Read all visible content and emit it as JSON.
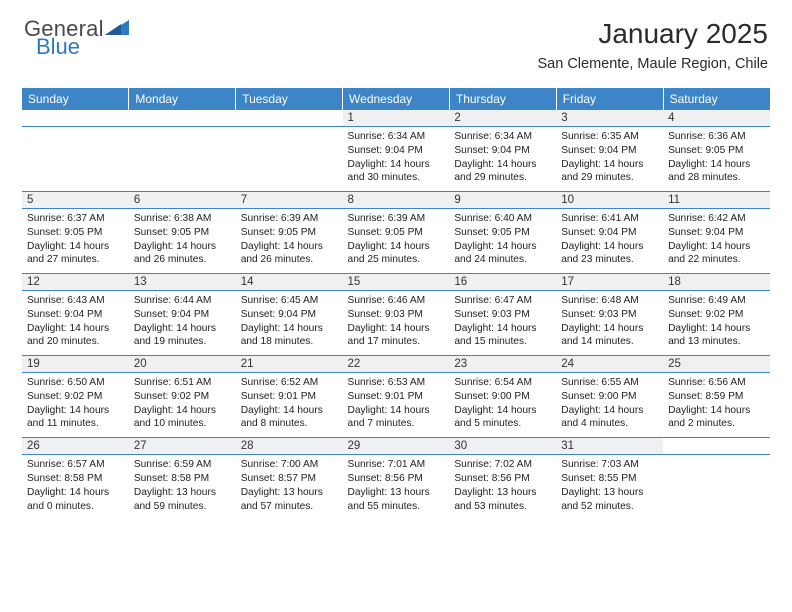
{
  "brand": {
    "word1": "General",
    "word2": "Blue"
  },
  "title": "January 2025",
  "location": "San Clemente, Maule Region, Chile",
  "colors": {
    "header_blue": "#3d85c6",
    "daynum_bg": "#eef0f2",
    "text": "#2b2b2b",
    "logo_blue": "#2f78c2",
    "logo_gray": "#4a4a4a",
    "cell_border": "#3d85c6"
  },
  "typography": {
    "title_fontsize": 28,
    "location_fontsize": 14.5,
    "dow_fontsize": 12,
    "daynum_fontsize": 11.5,
    "cell_fontsize": 10.2
  },
  "days_of_week": [
    "Sunday",
    "Monday",
    "Tuesday",
    "Wednesday",
    "Thursday",
    "Friday",
    "Saturday"
  ],
  "weeks": [
    [
      null,
      null,
      null,
      {
        "n": "1",
        "sunrise": "6:34 AM",
        "sunset": "9:04 PM",
        "daylight": "14 hours and 30 minutes."
      },
      {
        "n": "2",
        "sunrise": "6:34 AM",
        "sunset": "9:04 PM",
        "daylight": "14 hours and 29 minutes."
      },
      {
        "n": "3",
        "sunrise": "6:35 AM",
        "sunset": "9:04 PM",
        "daylight": "14 hours and 29 minutes."
      },
      {
        "n": "4",
        "sunrise": "6:36 AM",
        "sunset": "9:05 PM",
        "daylight": "14 hours and 28 minutes."
      }
    ],
    [
      {
        "n": "5",
        "sunrise": "6:37 AM",
        "sunset": "9:05 PM",
        "daylight": "14 hours and 27 minutes."
      },
      {
        "n": "6",
        "sunrise": "6:38 AM",
        "sunset": "9:05 PM",
        "daylight": "14 hours and 26 minutes."
      },
      {
        "n": "7",
        "sunrise": "6:39 AM",
        "sunset": "9:05 PM",
        "daylight": "14 hours and 26 minutes."
      },
      {
        "n": "8",
        "sunrise": "6:39 AM",
        "sunset": "9:05 PM",
        "daylight": "14 hours and 25 minutes."
      },
      {
        "n": "9",
        "sunrise": "6:40 AM",
        "sunset": "9:05 PM",
        "daylight": "14 hours and 24 minutes."
      },
      {
        "n": "10",
        "sunrise": "6:41 AM",
        "sunset": "9:04 PM",
        "daylight": "14 hours and 23 minutes."
      },
      {
        "n": "11",
        "sunrise": "6:42 AM",
        "sunset": "9:04 PM",
        "daylight": "14 hours and 22 minutes."
      }
    ],
    [
      {
        "n": "12",
        "sunrise": "6:43 AM",
        "sunset": "9:04 PM",
        "daylight": "14 hours and 20 minutes."
      },
      {
        "n": "13",
        "sunrise": "6:44 AM",
        "sunset": "9:04 PM",
        "daylight": "14 hours and 19 minutes."
      },
      {
        "n": "14",
        "sunrise": "6:45 AM",
        "sunset": "9:04 PM",
        "daylight": "14 hours and 18 minutes."
      },
      {
        "n": "15",
        "sunrise": "6:46 AM",
        "sunset": "9:03 PM",
        "daylight": "14 hours and 17 minutes."
      },
      {
        "n": "16",
        "sunrise": "6:47 AM",
        "sunset": "9:03 PM",
        "daylight": "14 hours and 15 minutes."
      },
      {
        "n": "17",
        "sunrise": "6:48 AM",
        "sunset": "9:03 PM",
        "daylight": "14 hours and 14 minutes."
      },
      {
        "n": "18",
        "sunrise": "6:49 AM",
        "sunset": "9:02 PM",
        "daylight": "14 hours and 13 minutes."
      }
    ],
    [
      {
        "n": "19",
        "sunrise": "6:50 AM",
        "sunset": "9:02 PM",
        "daylight": "14 hours and 11 minutes."
      },
      {
        "n": "20",
        "sunrise": "6:51 AM",
        "sunset": "9:02 PM",
        "daylight": "14 hours and 10 minutes."
      },
      {
        "n": "21",
        "sunrise": "6:52 AM",
        "sunset": "9:01 PM",
        "daylight": "14 hours and 8 minutes."
      },
      {
        "n": "22",
        "sunrise": "6:53 AM",
        "sunset": "9:01 PM",
        "daylight": "14 hours and 7 minutes."
      },
      {
        "n": "23",
        "sunrise": "6:54 AM",
        "sunset": "9:00 PM",
        "daylight": "14 hours and 5 minutes."
      },
      {
        "n": "24",
        "sunrise": "6:55 AM",
        "sunset": "9:00 PM",
        "daylight": "14 hours and 4 minutes."
      },
      {
        "n": "25",
        "sunrise": "6:56 AM",
        "sunset": "8:59 PM",
        "daylight": "14 hours and 2 minutes."
      }
    ],
    [
      {
        "n": "26",
        "sunrise": "6:57 AM",
        "sunset": "8:58 PM",
        "daylight": "14 hours and 0 minutes."
      },
      {
        "n": "27",
        "sunrise": "6:59 AM",
        "sunset": "8:58 PM",
        "daylight": "13 hours and 59 minutes."
      },
      {
        "n": "28",
        "sunrise": "7:00 AM",
        "sunset": "8:57 PM",
        "daylight": "13 hours and 57 minutes."
      },
      {
        "n": "29",
        "sunrise": "7:01 AM",
        "sunset": "8:56 PM",
        "daylight": "13 hours and 55 minutes."
      },
      {
        "n": "30",
        "sunrise": "7:02 AM",
        "sunset": "8:56 PM",
        "daylight": "13 hours and 53 minutes."
      },
      {
        "n": "31",
        "sunrise": "7:03 AM",
        "sunset": "8:55 PM",
        "daylight": "13 hours and 52 minutes."
      },
      null
    ]
  ],
  "labels": {
    "sunrise": "Sunrise:",
    "sunset": "Sunset:",
    "daylight": "Daylight:"
  }
}
